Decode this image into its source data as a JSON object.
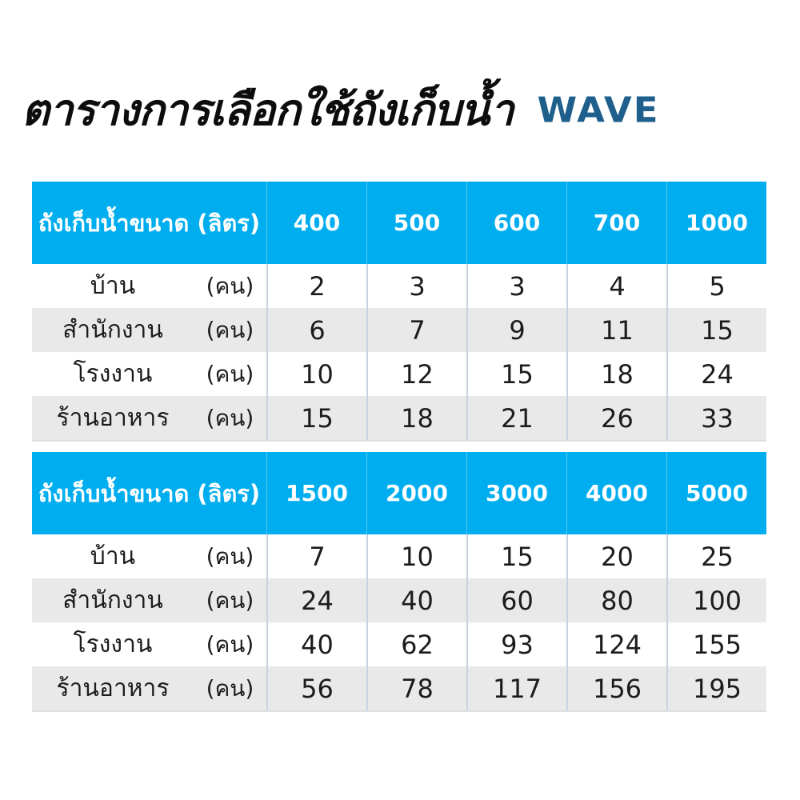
{
  "page": {
    "title": "ตารางการเลือกใช้ถังเก็บน้ำ",
    "brand": "WAVE"
  },
  "colors": {
    "header_blue": "#00AEEF",
    "brand_blue": "#1E5F8C",
    "stripe_gray": "#E9E9E9",
    "divider": "#C9D2E2",
    "header_text": "#FFFFFF",
    "body_text": "#1C1C1C"
  },
  "tables": [
    {
      "header": {
        "label": "ถังเก็บน้ำขนาด (ลิตร)",
        "sizes": [
          "400",
          "500",
          "600",
          "700",
          "1000"
        ]
      },
      "rows": [
        {
          "name": "บ้าน",
          "unit": "(คน)",
          "values": [
            "2",
            "3",
            "3",
            "4",
            "5"
          ]
        },
        {
          "name": "สำนักงาน",
          "unit": "(คน)",
          "values": [
            "6",
            "7",
            "9",
            "11",
            "15"
          ]
        },
        {
          "name": "โรงงาน",
          "unit": "(คน)",
          "values": [
            "10",
            "12",
            "15",
            "18",
            "24"
          ]
        },
        {
          "name": "ร้านอาหาร",
          "unit": "(คน)",
          "values": [
            "15",
            "18",
            "21",
            "26",
            "33"
          ]
        }
      ]
    },
    {
      "header": {
        "label": "ถังเก็บน้ำขนาด (ลิตร)",
        "sizes": [
          "1500",
          "2000",
          "3000",
          "4000",
          "5000"
        ]
      },
      "rows": [
        {
          "name": "บ้าน",
          "unit": "(คน)",
          "values": [
            "7",
            "10",
            "15",
            "20",
            "25"
          ]
        },
        {
          "name": "สำนักงาน",
          "unit": "(คน)",
          "values": [
            "24",
            "40",
            "60",
            "80",
            "100"
          ]
        },
        {
          "name": "โรงงาน",
          "unit": "(คน)",
          "values": [
            "40",
            "62",
            "93",
            "124",
            "155"
          ]
        },
        {
          "name": "ร้านอาหาร",
          "unit": "(คน)",
          "values": [
            "56",
            "78",
            "117",
            "156",
            "195"
          ]
        }
      ]
    }
  ]
}
